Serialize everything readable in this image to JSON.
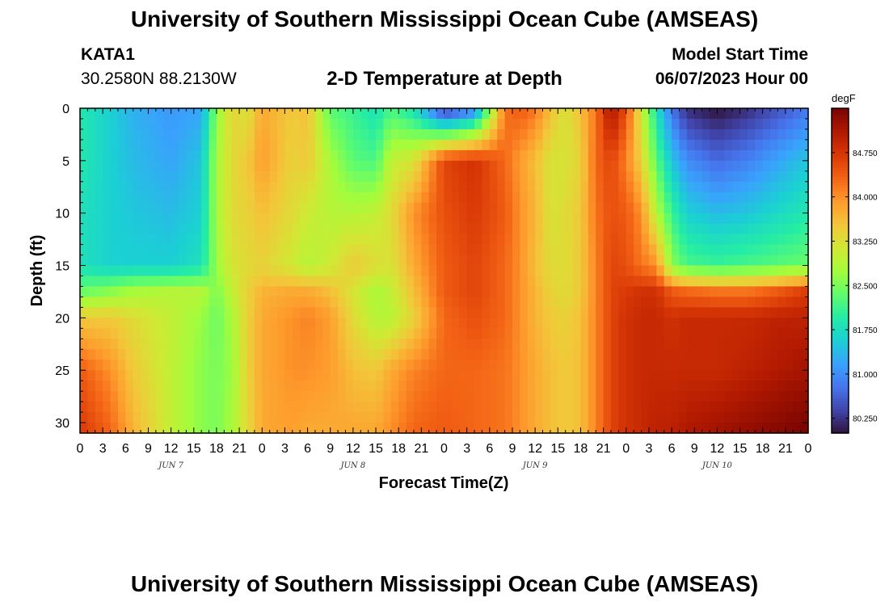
{
  "header": {
    "title": "University of Southern Mississippi Ocean Cube (AMSEAS)",
    "station_id": "KATA1",
    "station_coords": "30.2580N  88.2130W",
    "plot_title": "2-D Temperature at Depth",
    "model_start_label": "Model Start Time",
    "model_start_value": "06/07/2023 Hour 00"
  },
  "footer": {
    "title": "University of Southern Mississippi Ocean Cube (AMSEAS)"
  },
  "chart_data": {
    "type": "heatmap",
    "xlabel": "Forecast Time(Z)",
    "ylabel": "Depth (ft)",
    "x_unit": "hours from 06/07/2023 00Z",
    "xlim": [
      0,
      96
    ],
    "ylim": [
      31,
      0
    ],
    "x_tick_values": [
      0,
      3,
      6,
      9,
      12,
      15,
      18,
      21,
      24,
      27,
      30,
      33,
      36,
      39,
      42,
      45,
      48,
      51,
      54,
      57,
      60,
      63,
      66,
      69,
      72,
      75,
      78,
      81,
      84,
      87,
      90,
      93,
      96
    ],
    "x_tick_labels": [
      "0",
      "3",
      "6",
      "9",
      "12",
      "15",
      "18",
      "21",
      "0",
      "3",
      "6",
      "9",
      "12",
      "15",
      "18",
      "21",
      "0",
      "3",
      "6",
      "9",
      "12",
      "15",
      "18",
      "21",
      "0",
      "3",
      "6",
      "9",
      "12",
      "15",
      "18",
      "21",
      "0"
    ],
    "date_labels": [
      {
        "label": "JUN 7",
        "hour": 12
      },
      {
        "label": "JUN 8",
        "hour": 36
      },
      {
        "label": "JUN 9",
        "hour": 60
      },
      {
        "label": "JUN 10",
        "hour": 84
      }
    ],
    "y_ticks": [
      0,
      5,
      10,
      15,
      20,
      25,
      30
    ],
    "colorbar": {
      "unit": "degF",
      "min": 80.0,
      "max": 85.5,
      "tick_values": [
        84.75,
        84.0,
        83.25,
        82.5,
        81.75,
        81.0,
        80.25
      ],
      "tick_labels": [
        "84.750",
        "84.000",
        "83.250",
        "82.500",
        "81.750",
        "81.000",
        "80.250"
      ],
      "colors": [
        "#30123b",
        "#4145ab",
        "#4675ed",
        "#39a2fc",
        "#1bcfd4",
        "#24eca6",
        "#61fc6c",
        "#a4fc3b",
        "#d1e834",
        "#f3c63a",
        "#fe9b2d",
        "#f36315",
        "#d93806",
        "#b11901",
        "#7a0402"
      ]
    },
    "depths": [
      0,
      5,
      10,
      15,
      17.5,
      20,
      25,
      30.5
    ],
    "times": [
      0,
      4,
      7,
      12,
      16,
      18,
      20,
      22,
      24,
      28,
      30,
      33,
      36,
      39,
      41,
      44,
      48,
      52,
      56,
      58,
      60,
      62,
      64,
      66,
      68,
      70,
      72,
      74,
      76,
      78,
      80,
      84,
      88,
      92,
      96
    ],
    "values": [
      [
        81.9,
        81.6,
        81.3,
        81.1,
        81.2,
        82.6,
        83.4,
        83.2,
        83.8,
        83.5,
        83.6,
        82.3,
        82.1,
        81.8,
        82.2,
        81.8,
        80.2,
        80.8,
        84.2,
        84.4,
        84.2,
        83.6,
        83.2,
        83.6,
        84.2,
        85.2,
        84.5,
        83.1,
        81.8,
        80.8,
        80.2,
        80.0,
        80.2,
        80.5,
        80.8
      ],
      [
        81.9,
        81.6,
        81.4,
        81.2,
        81.5,
        82.8,
        83.3,
        83.5,
        83.9,
        83.4,
        83.5,
        82.8,
        82.3,
        82.2,
        83.0,
        83.2,
        84.6,
        84.8,
        84.3,
        83.9,
        83.6,
        83.2,
        83.2,
        83.4,
        84.3,
        84.6,
        84.1,
        83.4,
        82.3,
        81.5,
        81.0,
        80.7,
        80.9,
        81.2,
        81.5
      ],
      [
        81.8,
        81.6,
        81.5,
        81.4,
        81.6,
        82.8,
        83.3,
        83.4,
        83.6,
        83.3,
        83.1,
        82.9,
        82.9,
        83.0,
        83.3,
        84.0,
        84.5,
        84.7,
        84.4,
        84.0,
        83.7,
        83.2,
        83.3,
        83.5,
        84.2,
        84.5,
        84.4,
        84.0,
        82.9,
        82.1,
        81.6,
        81.4,
        81.5,
        81.7,
        81.9
      ],
      [
        81.8,
        81.6,
        81.6,
        81.6,
        81.8,
        82.7,
        83.2,
        83.3,
        83.4,
        83.1,
        82.9,
        83.1,
        83.5,
        83.3,
        83.2,
        83.8,
        84.4,
        84.6,
        84.3,
        84.0,
        83.6,
        83.3,
        83.3,
        83.5,
        84.1,
        84.6,
        84.5,
        84.2,
        84.0,
        82.6,
        82.2,
        82.1,
        82.2,
        82.3,
        82.4
      ],
      [
        82.4,
        82.6,
        82.8,
        82.9,
        82.9,
        82.5,
        83.0,
        83.4,
        83.7,
        83.8,
        83.8,
        83.6,
        83.2,
        82.8,
        83.0,
        83.6,
        84.4,
        84.6,
        84.3,
        84.0,
        83.7,
        83.4,
        83.3,
        83.5,
        84.1,
        84.6,
        84.7,
        84.8,
        84.8,
        84.4,
        84.3,
        84.2,
        84.2,
        84.4,
        84.7
      ],
      [
        83.5,
        83.5,
        83.3,
        83.0,
        82.7,
        82.4,
        82.8,
        83.4,
        83.8,
        84.0,
        84.1,
        83.9,
        83.3,
        82.9,
        82.9,
        83.4,
        84.3,
        84.5,
        84.3,
        84.0,
        83.7,
        83.5,
        83.4,
        83.6,
        84.1,
        84.6,
        84.8,
        84.9,
        84.9,
        84.8,
        84.9,
        84.9,
        84.9,
        85.0,
        85.0
      ],
      [
        84.4,
        84.0,
        83.5,
        83.0,
        82.6,
        82.5,
        82.7,
        83.4,
        83.8,
        84.0,
        84.0,
        83.9,
        83.6,
        83.5,
        83.8,
        84.1,
        84.3,
        84.3,
        84.2,
        84.0,
        83.8,
        83.6,
        83.5,
        83.6,
        84.1,
        84.6,
        84.8,
        84.9,
        84.9,
        84.9,
        84.9,
        84.9,
        85.0,
        85.1,
        85.2
      ],
      [
        84.7,
        84.3,
        83.7,
        83.0,
        82.6,
        82.5,
        82.8,
        83.3,
        83.8,
        83.9,
        83.8,
        83.8,
        83.8,
        83.8,
        84.0,
        84.3,
        84.4,
        84.3,
        84.2,
        84.0,
        83.8,
        83.6,
        83.5,
        83.6,
        84.1,
        84.6,
        84.8,
        84.9,
        85.0,
        85.0,
        85.1,
        85.2,
        85.3,
        85.4,
        85.5
      ]
    ]
  }
}
